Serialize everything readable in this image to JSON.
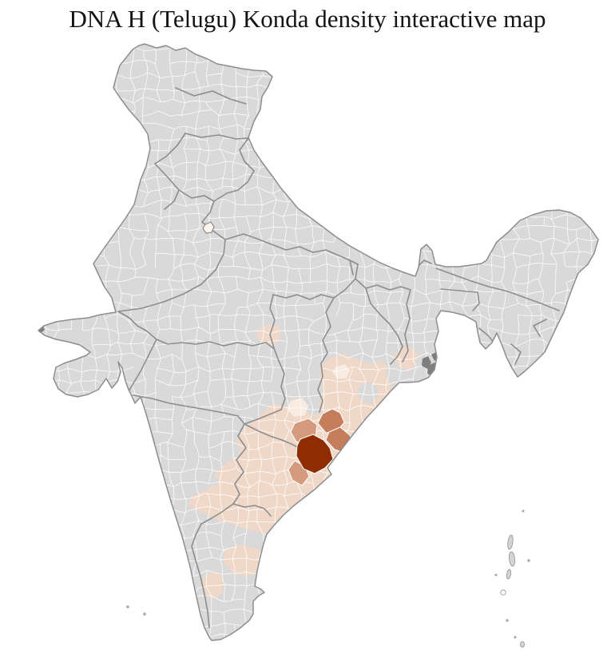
{
  "title": "DNA H (Telugu) Konda density interactive map",
  "map": {
    "description": "India district-level choropleth, density concentrated in the Andhra Pradesh / Odisha coastal belt",
    "colors": {
      "background": "#ffffff",
      "base": "#d9d9d9",
      "district_border": "#ffffff",
      "state_border": "#8d8d8d",
      "outline": "#8d8d8d",
      "island_fill": "#d4d4d4",
      "delta_marsh": "#7e7e7e",
      "coast_speck": "#8a8a8a",
      "density_0": "#fdf5ee",
      "density_1": "#f8ebe1",
      "density_2": "#f0d8c8",
      "density_3": "#d49a7c",
      "density_4": "#c47e5b",
      "density_5": "#8f2d02"
    },
    "density_levels": [
      {
        "rank": 0,
        "color": "#fdf5ee"
      },
      {
        "rank": 1,
        "color": "#f8ebe1"
      },
      {
        "rank": 2,
        "color": "#f0d8c8"
      },
      {
        "rank": 3,
        "color": "#d49a7c"
      },
      {
        "rank": 4,
        "color": "#c47e5b"
      },
      {
        "rank": 5,
        "color": "#8f2d02"
      }
    ]
  }
}
